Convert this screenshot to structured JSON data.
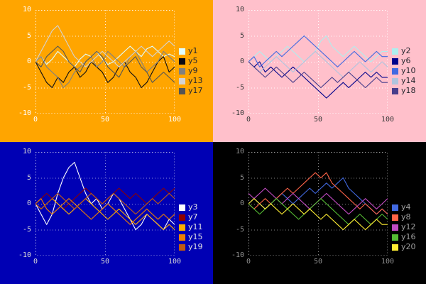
{
  "figure": {
    "x_range": [
      0,
      100
    ],
    "y_range": [
      -10,
      10
    ],
    "x_ticks": [
      "0",
      "50",
      "100"
    ],
    "y_ticks": [
      "10",
      "5",
      "0",
      "-5",
      "-10"
    ]
  },
  "chart_data": [
    {
      "type": "line",
      "position": "top-left",
      "background": "#FFA500",
      "tick_color": "#FFFFFF",
      "legend_text_color": "#26262E",
      "grid_color": "rgba(255,255,255,0.85)",
      "xlim": [
        0,
        100
      ],
      "ylim": [
        -10,
        10
      ],
      "x_ticks": [
        0,
        50,
        100
      ],
      "y_ticks": [
        10,
        5,
        0,
        -5,
        -10
      ],
      "x_step": 4,
      "legend_position": "right",
      "grid": true,
      "series": [
        {
          "name": "y1",
          "color": "#E0FFFF",
          "values": [
            0,
            1,
            -0.5,
            0.5,
            2,
            1,
            0,
            -1,
            0.5,
            1.5,
            1,
            2,
            0.5,
            -0.5,
            0,
            1,
            2,
            3,
            2,
            1,
            2.5,
            3,
            2,
            1,
            1.5,
            1
          ]
        },
        {
          "name": "y5",
          "color": "#0A0A14",
          "values": [
            0,
            -2,
            -4,
            -5,
            -3,
            -4,
            -2,
            -1,
            -3,
            -2,
            0,
            -1,
            -2,
            -4,
            -3,
            -1,
            0,
            -2,
            -3,
            -5,
            -4,
            -2,
            0,
            1,
            -2,
            -1
          ]
        },
        {
          "name": "y9",
          "color": "#808080",
          "values": [
            0,
            1,
            -1,
            -2,
            -3,
            -5,
            -4,
            -2,
            -1,
            0,
            1,
            -1,
            0,
            2,
            1,
            0,
            -1,
            1,
            2,
            0,
            -2,
            -1,
            0,
            2,
            1,
            0
          ]
        },
        {
          "name": "y13",
          "color": "#D3D3D3",
          "values": [
            0,
            2,
            4,
            6,
            7,
            5,
            3,
            1,
            0,
            -1,
            0,
            1,
            2,
            1,
            0,
            -1,
            0,
            1,
            2,
            3,
            2,
            1,
            2,
            3,
            4,
            3
          ]
        },
        {
          "name": "y17",
          "color": "#545454",
          "values": [
            0,
            -1,
            1,
            2,
            3,
            2,
            0,
            -1,
            -2,
            0,
            1,
            2,
            1,
            -1,
            -2,
            -3,
            -1,
            0,
            1,
            -1,
            -2,
            -4,
            -3,
            -2,
            -3,
            -4
          ]
        }
      ]
    },
    {
      "type": "line",
      "position": "top-right",
      "background": "#FFC0CB",
      "tick_color": "#3A3A3A",
      "legend_text_color": "#26262E",
      "grid_color": "rgba(255,255,255,0.95)",
      "xlim": [
        0,
        100
      ],
      "ylim": [
        -10,
        10
      ],
      "x_ticks": [
        0,
        50,
        100
      ],
      "y_ticks": [
        10,
        5,
        0,
        -5,
        -10
      ],
      "x_step": 4,
      "legend_position": "right",
      "grid": true,
      "series": [
        {
          "name": "y2",
          "color": "#AFEEEE",
          "values": [
            0,
            1,
            2,
            1,
            0,
            1,
            2,
            3,
            2,
            1,
            0,
            1,
            2,
            4,
            5,
            3,
            2,
            1,
            2,
            3,
            2,
            1,
            0,
            1,
            2,
            2
          ]
        },
        {
          "name": "y6",
          "color": "#00008B",
          "values": [
            0,
            -1,
            0,
            -2,
            -1,
            -2,
            -3,
            -2,
            -1,
            -2,
            -3,
            -4,
            -5,
            -6,
            -7,
            -6,
            -5,
            -4,
            -5,
            -4,
            -3,
            -2,
            -3,
            -2,
            -3,
            -3
          ]
        },
        {
          "name": "y10",
          "color": "#4169E1",
          "values": [
            0,
            1,
            -1,
            0,
            1,
            2,
            1,
            2,
            3,
            4,
            5,
            4,
            3,
            2,
            1,
            0,
            -1,
            0,
            1,
            2,
            1,
            0,
            1,
            2,
            1,
            1
          ]
        },
        {
          "name": "y14",
          "color": "#B0C4DE",
          "values": [
            0,
            -1,
            -2,
            -1,
            0,
            1,
            0,
            -1,
            -2,
            -1,
            0,
            1,
            2,
            1,
            0,
            -1,
            -2,
            -3,
            -2,
            -1,
            0,
            -1,
            -2,
            -1,
            0,
            -1
          ]
        },
        {
          "name": "y18",
          "color": "#483D8B",
          "values": [
            0,
            -1,
            -2,
            -3,
            -2,
            -1,
            -2,
            -3,
            -4,
            -3,
            -2,
            -3,
            -4,
            -5,
            -4,
            -3,
            -4,
            -3,
            -2,
            -3,
            -4,
            -5,
            -4,
            -3,
            -4,
            -4
          ]
        }
      ]
    },
    {
      "type": "line",
      "position": "bottom-left",
      "background": "#0000B4",
      "tick_color": "#D8D8D8",
      "legend_text_color": "#E4E4E4",
      "grid_color": "rgba(255,255,255,0.55)",
      "xlim": [
        0,
        100
      ],
      "ylim": [
        -10,
        10
      ],
      "x_ticks": [
        0,
        50,
        100
      ],
      "y_ticks": [
        10,
        5,
        0,
        -5,
        -10
      ],
      "x_step": 4,
      "legend_position": "right",
      "grid": true,
      "series": [
        {
          "name": "y3",
          "color": "#FFFFFF",
          "values": [
            0,
            -2,
            -4,
            -2,
            2,
            5,
            7,
            8,
            5,
            2,
            0,
            1,
            -1,
            0,
            2,
            1,
            -1,
            -3,
            -5,
            -4,
            -2,
            -3,
            -4,
            -5,
            -3,
            -4
          ]
        },
        {
          "name": "y7",
          "color": "#8B0000",
          "values": [
            0,
            1,
            2,
            1,
            0,
            -1,
            0,
            1,
            2,
            3,
            2,
            1,
            0,
            1,
            2,
            3,
            2,
            1,
            2,
            1,
            0,
            1,
            2,
            3,
            2,
            3
          ]
        },
        {
          "name": "y11",
          "color": "#FFB000",
          "values": [
            0,
            -1,
            0,
            1,
            0,
            -1,
            -2,
            -1,
            0,
            1,
            0,
            -1,
            -2,
            -3,
            -2,
            -1,
            -2,
            -3,
            -4,
            -3,
            -2,
            -3,
            -4,
            -5,
            -4,
            -5
          ]
        },
        {
          "name": "y15",
          "color": "#F08000",
          "values": [
            0,
            1,
            -1,
            -2,
            -1,
            0,
            1,
            0,
            -1,
            -2,
            -3,
            -2,
            -1,
            0,
            -1,
            -2,
            -3,
            -4,
            -3,
            -2,
            -1,
            -2,
            -3,
            -2,
            -3,
            -2
          ]
        },
        {
          "name": "y19",
          "color": "#C05A10",
          "values": [
            0,
            -1,
            0,
            1,
            2,
            1,
            0,
            -1,
            0,
            1,
            2,
            1,
            0,
            1,
            2,
            1,
            0,
            -1,
            -2,
            -1,
            0,
            1,
            0,
            1,
            2,
            1
          ]
        }
      ]
    },
    {
      "type": "line",
      "position": "bottom-right",
      "background": "#000000",
      "tick_color": "#909090",
      "legend_text_color": "#A0A0A0",
      "grid_color": "rgba(255,255,255,0.5)",
      "xlim": [
        0,
        100
      ],
      "ylim": [
        -10,
        10
      ],
      "x_ticks": [
        0,
        50,
        100
      ],
      "y_ticks": [
        10,
        5,
        0,
        -5,
        -10
      ],
      "x_step": 4,
      "legend_position": "right",
      "grid": true,
      "series": [
        {
          "name": "y4",
          "color": "#4169E1",
          "values": [
            0,
            1,
            0,
            -1,
            0,
            1,
            2,
            1,
            0,
            1,
            2,
            3,
            2,
            3,
            4,
            3,
            4,
            5,
            3,
            2,
            1,
            0,
            -1,
            -2,
            -1,
            -2
          ]
        },
        {
          "name": "y8",
          "color": "#FF6347",
          "values": [
            0,
            -1,
            0,
            1,
            0,
            1,
            2,
            3,
            2,
            3,
            4,
            5,
            6,
            5,
            6,
            4,
            3,
            2,
            1,
            0,
            -1,
            0,
            -1,
            -2,
            -1,
            -2
          ]
        },
        {
          "name": "y12",
          "color": "#C24BC2",
          "values": [
            2,
            1,
            2,
            3,
            2,
            1,
            0,
            1,
            2,
            1,
            0,
            -1,
            0,
            1,
            2,
            1,
            0,
            -1,
            -2,
            -1,
            0,
            1,
            0,
            -1,
            0,
            1
          ]
        },
        {
          "name": "y16",
          "color": "#55BB33",
          "values": [
            0,
            -1,
            -2,
            -1,
            0,
            1,
            0,
            -1,
            -2,
            -3,
            -2,
            -1,
            0,
            1,
            0,
            -1,
            -2,
            -3,
            -4,
            -3,
            -2,
            -3,
            -4,
            -3,
            -2,
            -3
          ]
        },
        {
          "name": "y20",
          "color": "#FFEE33",
          "values": [
            0,
            1,
            0,
            -1,
            0,
            -1,
            -2,
            -1,
            0,
            -1,
            -2,
            -1,
            -2,
            -3,
            -2,
            -3,
            -4,
            -5,
            -4,
            -3,
            -4,
            -5,
            -4,
            -3,
            -4,
            -4
          ]
        }
      ]
    }
  ]
}
